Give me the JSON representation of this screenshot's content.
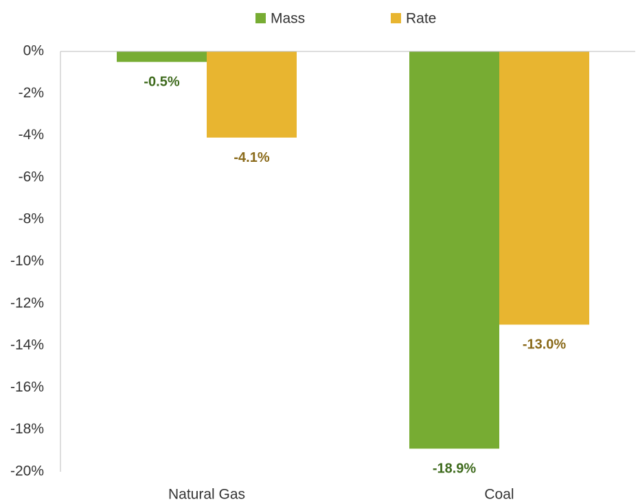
{
  "chart_data": {
    "type": "bar",
    "categories": [
      "Natural Gas",
      "Coal"
    ],
    "series": [
      {
        "name": "Mass",
        "color": "#77ac33",
        "values": [
          -0.5,
          -18.9
        ],
        "value_labels": [
          "-0.5%",
          "-18.9%"
        ]
      },
      {
        "name": "Rate",
        "color": "#e8b530",
        "values": [
          -4.1,
          -13.0
        ],
        "value_labels": [
          "-4.1%",
          "-13.0%"
        ]
      }
    ],
    "ylim": [
      -20,
      0
    ],
    "yticks": [
      {
        "value": 0,
        "label": "0%"
      },
      {
        "value": -2,
        "label": "-2%"
      },
      {
        "value": -4,
        "label": "-4%"
      },
      {
        "value": -6,
        "label": "-6%"
      },
      {
        "value": -8,
        "label": "-8%"
      },
      {
        "value": -10,
        "label": "-10%"
      },
      {
        "value": -12,
        "label": "-12%"
      },
      {
        "value": -14,
        "label": "-14%"
      },
      {
        "value": -16,
        "label": "-16%"
      },
      {
        "value": -18,
        "label": "-18%"
      },
      {
        "value": -20,
        "label": "-20%"
      }
    ],
    "legend": "top"
  }
}
